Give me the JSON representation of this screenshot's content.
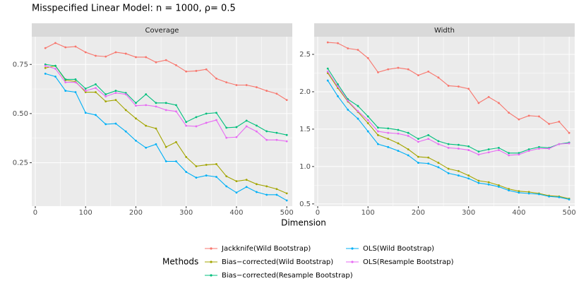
{
  "chart_data": {
    "type": "line",
    "title": "Misspecified Linear Model: n = 1000, ρ= 0.5",
    "x_label": "Dimension",
    "x": [
      20,
      40,
      60,
      80,
      100,
      120,
      140,
      160,
      180,
      200,
      220,
      240,
      260,
      280,
      300,
      320,
      340,
      360,
      380,
      400,
      420,
      440,
      460,
      480,
      500
    ],
    "xlim": [
      -7,
      511
    ],
    "xticks": [
      0,
      100,
      200,
      300,
      400,
      500
    ],
    "legend": {
      "title": "Methods",
      "items": [
        {
          "name": "Jackknife(Wild Bootstrap)",
          "color": "#F8766D"
        },
        {
          "name": "Bias−corrected(Wild Bootstrap)",
          "color": "#A3A500"
        },
        {
          "name": "Bias−corrected(Resample Bootstrap)",
          "color": "#00BF7D"
        },
        {
          "name": "OLS(Wild Bootstrap)",
          "color": "#00B0F6"
        },
        {
          "name": "OLS(Resample Bootstrap)",
          "color": "#E76BF3"
        }
      ]
    },
    "facets": [
      {
        "title": "Coverage",
        "ylim": [
          0.029,
          0.891
        ],
        "yticks": [
          0.25,
          {
            "value": 0.5,
            "label": "0.50"
          },
          0.75
        ],
        "series": [
          {
            "values": [
              0.833,
              0.859,
              0.837,
              0.841,
              0.812,
              0.794,
              0.79,
              0.812,
              0.805,
              0.787,
              0.787,
              0.761,
              0.772,
              0.746,
              0.714,
              0.717,
              0.725,
              0.678,
              0.659,
              0.645,
              0.645,
              0.634,
              0.616,
              0.601,
              0.569
            ]
          },
          {
            "values": [
              0.732,
              0.743,
              0.67,
              0.663,
              0.609,
              0.609,
              0.562,
              0.569,
              0.518,
              0.475,
              0.438,
              0.424,
              0.33,
              0.355,
              0.279,
              0.232,
              0.239,
              0.243,
              0.181,
              0.156,
              0.163,
              0.141,
              0.13,
              0.116,
              0.094
            ]
          },
          {
            "values": [
              0.75,
              0.743,
              0.674,
              0.674,
              0.627,
              0.649,
              0.598,
              0.616,
              0.605,
              0.554,
              0.598,
              0.554,
              0.554,
              0.543,
              0.457,
              0.482,
              0.5,
              0.504,
              0.428,
              0.431,
              0.464,
              0.439,
              0.41,
              0.402,
              0.391
            ]
          },
          {
            "values": [
              0.703,
              0.688,
              0.616,
              0.609,
              0.504,
              0.493,
              0.446,
              0.449,
              0.409,
              0.362,
              0.326,
              0.344,
              0.257,
              0.257,
              0.203,
              0.174,
              0.185,
              0.178,
              0.13,
              0.098,
              0.127,
              0.101,
              0.087,
              0.087,
              0.058
            ]
          },
          {
            "values": [
              0.743,
              0.728,
              0.659,
              0.659,
              0.616,
              0.63,
              0.587,
              0.605,
              0.598,
              0.54,
              0.543,
              0.536,
              0.518,
              0.511,
              0.438,
              0.435,
              0.453,
              0.467,
              0.377,
              0.38,
              0.435,
              0.409,
              0.366,
              0.366,
              0.359
            ]
          }
        ]
      },
      {
        "title": "Width",
        "ylim": [
          0.47,
          2.736
        ],
        "yticks": [
          0.5,
          {
            "value": 1,
            "label": "1.0"
          },
          1.5,
          {
            "value": 2,
            "label": "2.0"
          },
          2.5
        ],
        "series": [
          {
            "values": [
              2.66,
              2.65,
              2.58,
              2.56,
              2.45,
              2.26,
              2.3,
              2.32,
              2.3,
              2.22,
              2.27,
              2.19,
              2.08,
              2.07,
              2.04,
              1.85,
              1.93,
              1.85,
              1.72,
              1.63,
              1.68,
              1.67,
              1.57,
              1.6,
              1.45
            ]
          },
          {
            "values": [
              2.25,
              2.05,
              1.87,
              1.73,
              1.58,
              1.42,
              1.37,
              1.31,
              1.23,
              1.13,
              1.12,
              1.05,
              0.97,
              0.94,
              0.88,
              0.81,
              0.79,
              0.75,
              0.7,
              0.67,
              0.66,
              0.64,
              0.61,
              0.6,
              0.57
            ]
          },
          {
            "values": [
              2.31,
              2.1,
              1.9,
              1.81,
              1.67,
              1.52,
              1.51,
              1.49,
              1.45,
              1.37,
              1.42,
              1.34,
              1.3,
              1.29,
              1.27,
              1.2,
              1.23,
              1.25,
              1.18,
              1.18,
              1.23,
              1.26,
              1.25,
              1.3,
              1.32
            ]
          },
          {
            "values": [
              2.15,
              1.94,
              1.76,
              1.64,
              1.47,
              1.3,
              1.26,
              1.21,
              1.15,
              1.05,
              1.04,
              0.99,
              0.91,
              0.88,
              0.84,
              0.78,
              0.76,
              0.73,
              0.68,
              0.65,
              0.64,
              0.63,
              0.6,
              0.59,
              0.56
            ]
          },
          {
            "values": [
              2.27,
              2.07,
              1.88,
              1.74,
              1.62,
              1.47,
              1.45,
              1.44,
              1.41,
              1.33,
              1.37,
              1.3,
              1.25,
              1.24,
              1.22,
              1.16,
              1.19,
              1.22,
              1.15,
              1.16,
              1.21,
              1.24,
              1.24,
              1.3,
              1.31
            ]
          }
        ]
      }
    ]
  }
}
